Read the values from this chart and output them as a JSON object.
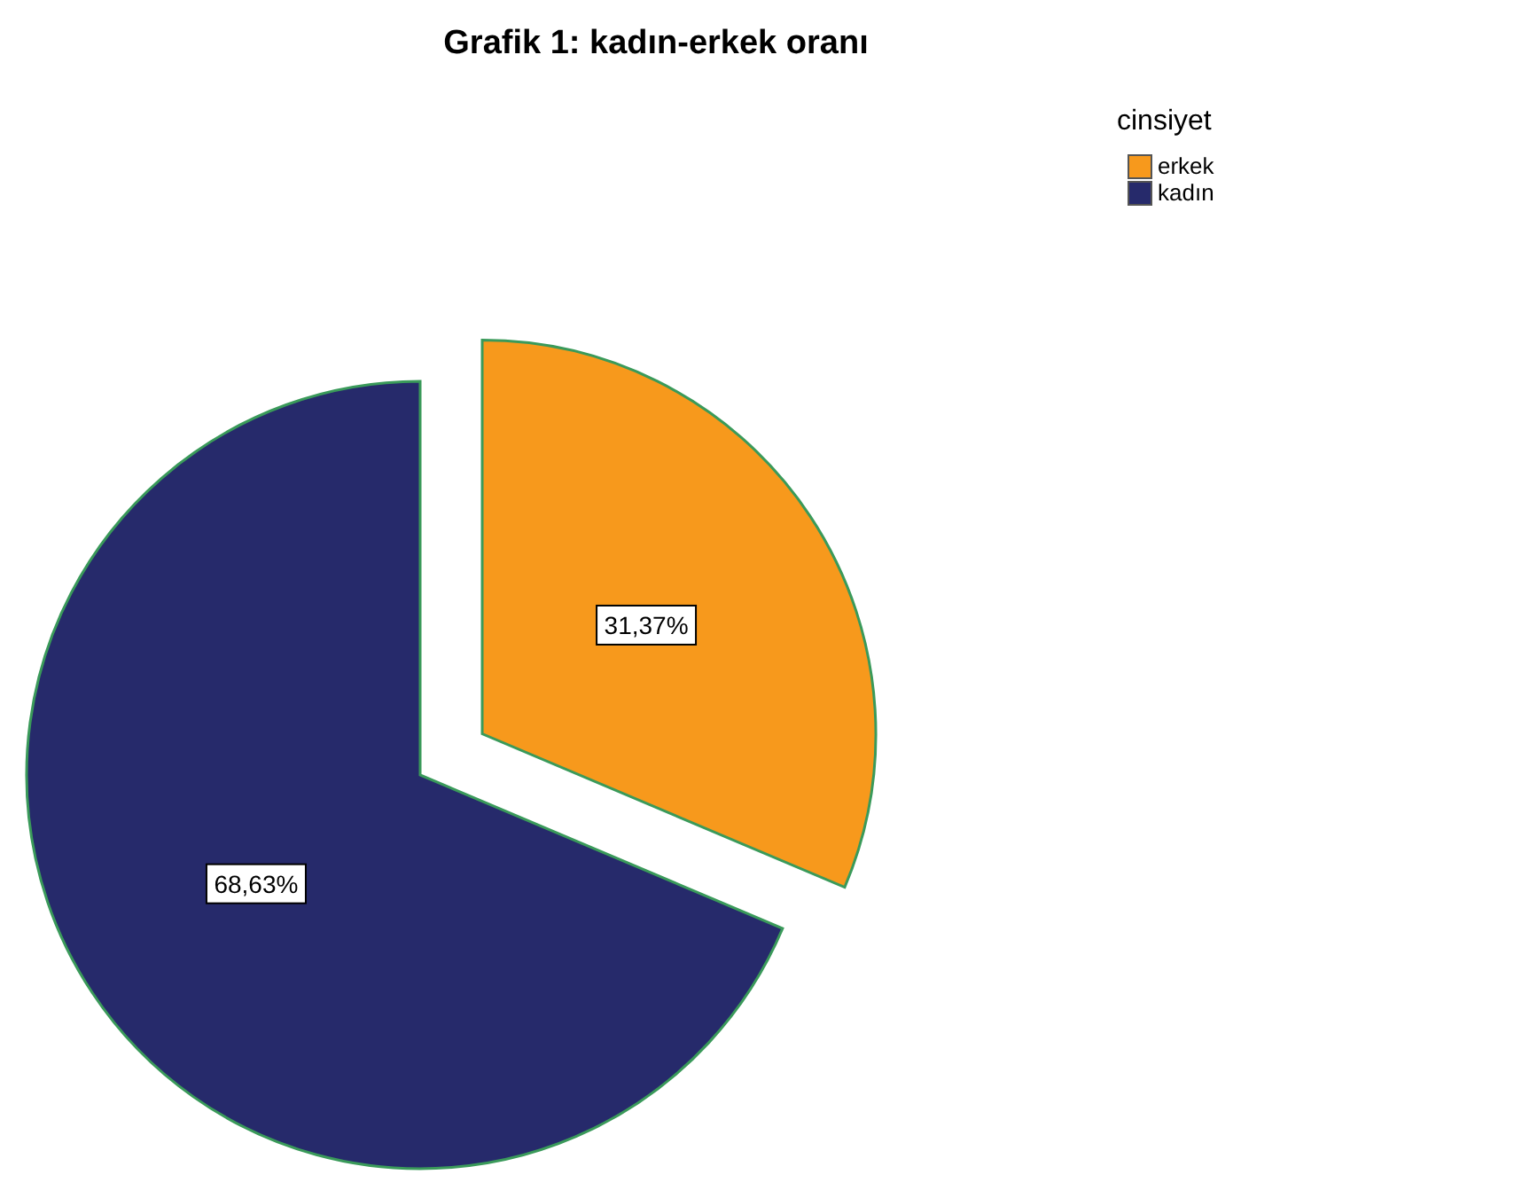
{
  "chart_data": {
    "type": "pie",
    "title": "Grafik 1: kadın-erkek oranı",
    "legend_title": "cinsiyet",
    "legend": "top right",
    "categories": [
      "erkek",
      "kadın"
    ],
    "values": [
      31.37,
      68.63
    ],
    "colors": [
      "#f7991c",
      "#262a6b"
    ],
    "value_labels": [
      "31,37%",
      "68,63%"
    ]
  }
}
